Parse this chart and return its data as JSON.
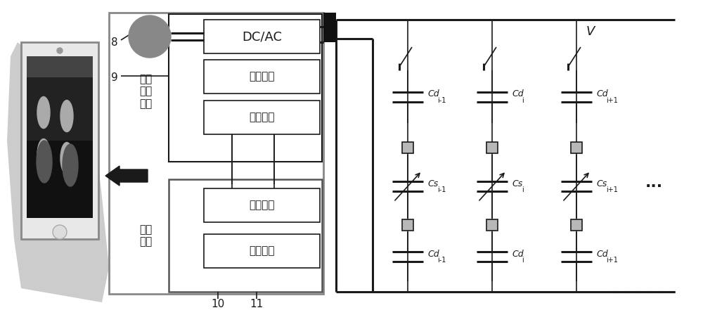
{
  "bg_color": "#ffffff",
  "line_color": "#1a1a1a",
  "gray_fill": "#b8b8b8",
  "dark_fill": "#111111",
  "text_color": "#1a1a1a",
  "fig_width": 10.0,
  "fig_height": 4.48,
  "dpi": 100,
  "labels": {
    "dc_ac": "DC/AC",
    "signal_ctrl": "信号控制",
    "collect_data": "采集数据",
    "ctrl_collect": "控制\n采集\n模块",
    "data_recv": "数据接收",
    "data_send": "数据发送",
    "bluetooth": "蓝牙\n模块",
    "num8": "8",
    "num9": "9",
    "num10": "10",
    "num11": "11",
    "V": "V",
    "dots": "…"
  },
  "col_labels_top": [
    [
      "Cd",
      "i-1"
    ],
    [
      "Cd",
      "i"
    ],
    [
      "Cd",
      "i+1"
    ]
  ],
  "col_labels_cs": [
    [
      "Cs",
      "i-1"
    ],
    [
      "Cs",
      "i"
    ],
    [
      "Cs",
      "i+1"
    ]
  ],
  "col_labels_bot": [
    [
      "Cd",
      "i-1"
    ],
    [
      "Cd",
      "i"
    ],
    [
      "Cd",
      "i+1"
    ]
  ]
}
